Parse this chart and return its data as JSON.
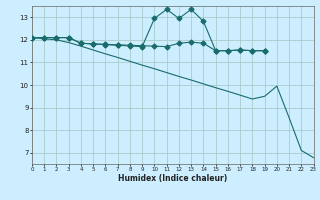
{
  "title": "",
  "xlabel": "Humidex (Indice chaleur)",
  "bg_color": "#cceeff",
  "grid_color": "#aacccc",
  "line_color": "#1a6b6b",
  "xmin": 0,
  "xmax": 23,
  "ymin": 6.5,
  "ymax": 13.5,
  "yticks": [
    7,
    8,
    9,
    10,
    11,
    12,
    13
  ],
  "xticks": [
    0,
    1,
    2,
    3,
    4,
    5,
    6,
    7,
    8,
    9,
    10,
    11,
    12,
    13,
    14,
    15,
    16,
    17,
    18,
    19,
    20,
    21,
    22,
    23
  ],
  "line1_x": [
    0,
    1,
    2,
    3,
    4,
    5,
    6,
    7,
    8,
    9,
    10,
    11,
    12,
    13,
    14,
    15,
    16,
    17,
    18,
    19
  ],
  "line1_y": [
    12.1,
    12.1,
    12.1,
    12.1,
    11.85,
    11.82,
    11.8,
    11.78,
    11.76,
    11.74,
    11.72,
    11.7,
    11.85,
    11.9,
    11.85,
    11.52,
    11.52,
    11.55,
    11.52,
    11.52
  ],
  "line2_x": [
    0,
    1,
    2,
    3,
    4,
    5,
    6,
    7,
    8,
    9,
    10,
    11,
    12,
    13,
    14,
    15,
    16,
    17,
    18,
    19,
    20,
    21,
    22,
    23
  ],
  "line2_y": [
    12.1,
    12.1,
    12.1,
    12.1,
    11.85,
    11.82,
    11.79,
    11.76,
    11.73,
    11.7,
    12.95,
    13.35,
    12.95,
    13.35,
    12.82,
    11.52,
    11.52,
    11.55,
    11.52,
    11.52,
    null,
    null,
    null,
    null
  ],
  "line3_x": [
    0,
    1,
    2,
    3,
    4,
    5,
    6,
    7,
    8,
    9,
    10,
    11,
    12,
    13,
    14,
    15,
    16,
    17,
    18,
    19,
    20,
    21,
    22,
    23
  ],
  "line3_y": [
    12.1,
    12.05,
    12.0,
    11.88,
    11.72,
    11.55,
    11.38,
    11.22,
    11.05,
    10.88,
    10.72,
    10.55,
    10.38,
    10.22,
    10.05,
    9.88,
    9.72,
    9.55,
    9.38,
    9.5,
    9.95,
    8.55,
    7.1,
    6.78
  ]
}
